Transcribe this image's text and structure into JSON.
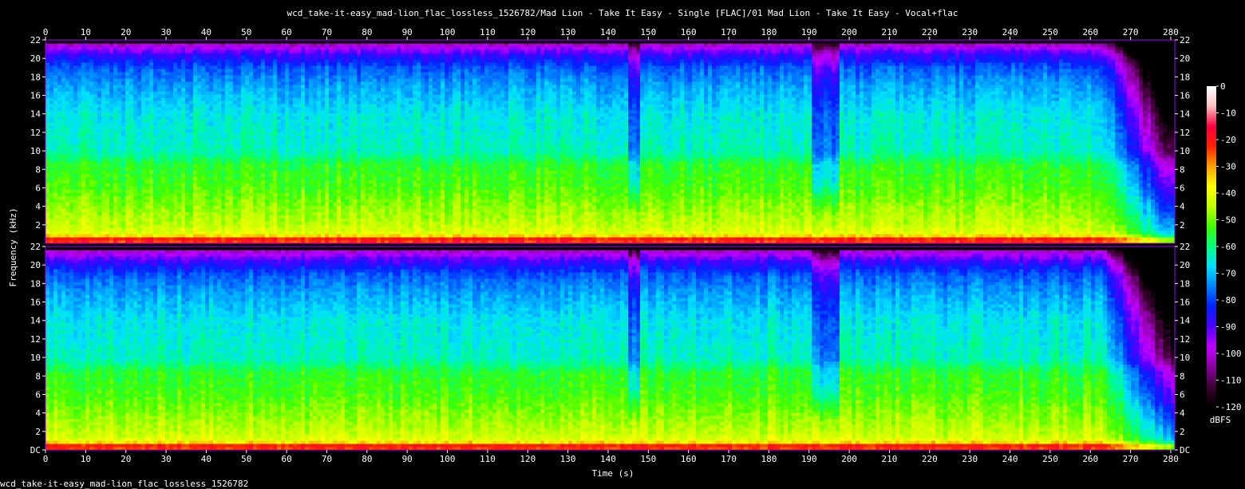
{
  "chart_data": {
    "type": "heatmap",
    "title": "wcd_take-it-easy_mad-lion_flac_lossless_1526782/Mad Lion - Take It Easy - Single [FLAC]/01 Mad Lion - Take It Easy - Vocal+flac",
    "footer": "wcd_take-it-easy_mad-lion_flac_lossless_1526782",
    "xlabel": "Time (s)",
    "ylabel": "Frequency (kHz)",
    "xlim": [
      0,
      281
    ],
    "ylim": [
      0,
      22
    ],
    "x_ticks": [
      "0",
      "10",
      "20",
      "30",
      "40",
      "50",
      "60",
      "70",
      "80",
      "90",
      "100",
      "110",
      "120",
      "130",
      "140",
      "150",
      "160",
      "170",
      "180",
      "190",
      "200",
      "210",
      "220",
      "230",
      "240",
      "250",
      "260",
      "270",
      "280"
    ],
    "y_ticks_left": [
      "DC",
      "2",
      "4",
      "6",
      "8",
      "10",
      "12",
      "14",
      "16",
      "18",
      "20",
      "22"
    ],
    "y_ticks_right": [
      "DC",
      "2",
      "4",
      "6",
      "8",
      "10",
      "12",
      "14",
      "16",
      "18",
      "20",
      "22"
    ],
    "channels": 2,
    "colorbar": {
      "label": "dBFS",
      "ticks": [
        "0",
        "-10",
        "-20",
        "-30",
        "-40",
        "-50",
        "-60",
        "-70",
        "-80",
        "-90",
        "-100",
        "-110",
        "-120"
      ],
      "range": [
        -120,
        0
      ],
      "colors": [
        "#000000",
        "#3c0030",
        "#8a00a0",
        "#c000ff",
        "#5000ff",
        "#0020ff",
        "#0080ff",
        "#00e0ff",
        "#00ff80",
        "#40ff00",
        "#c0ff00",
        "#ffff00",
        "#ffa000",
        "#ff2000",
        "#ff0040",
        "#ffc0c0",
        "#ffffff"
      ]
    },
    "spectrum_profile": {
      "freq_khz": [
        0,
        0.5,
        1,
        2,
        4,
        6,
        8.5,
        10,
        14,
        17,
        19,
        20.5,
        21.5,
        22
      ],
      "level_dbfs": [
        -25,
        -20,
        -40,
        -44,
        -48,
        -52,
        -55,
        -63,
        -66,
        -72,
        -78,
        -88,
        -100,
        -120
      ]
    },
    "cutoff_khz": 21.5,
    "fade_out_s": [
      263,
      281
    ],
    "quiet_sections_s": [
      [
        145,
        148
      ],
      [
        191,
        198
      ]
    ]
  }
}
